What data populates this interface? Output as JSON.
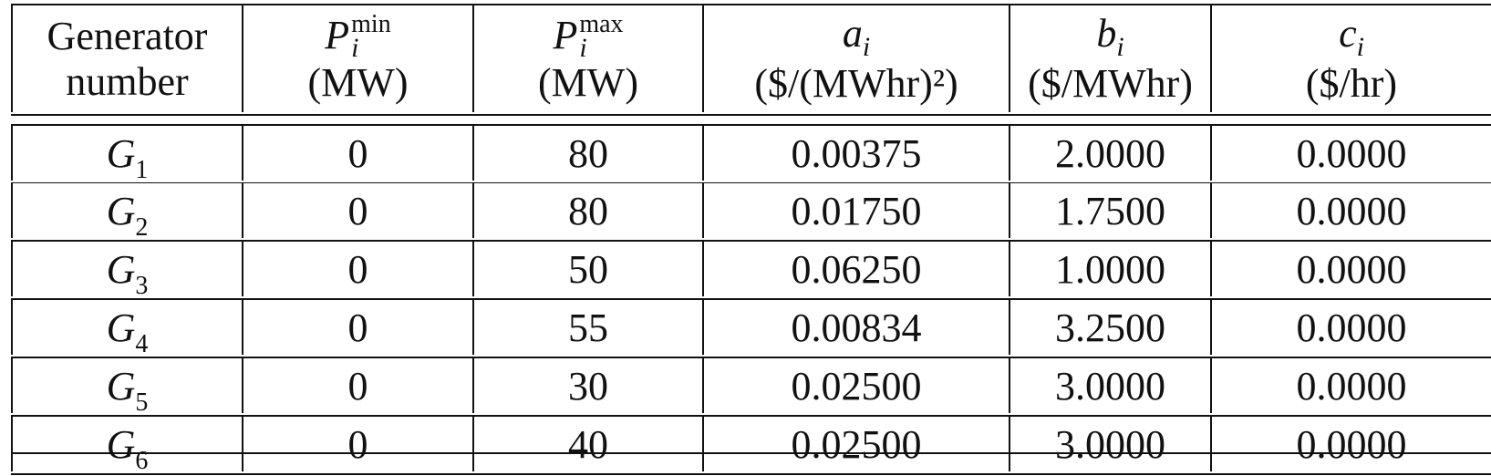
{
  "table": {
    "columns": [
      {
        "key": "generator",
        "line1": "Generator",
        "line2": "number"
      },
      {
        "key": "p_min",
        "symbol": "P",
        "superscript": "min",
        "subscript": "i",
        "unit": "(MW)"
      },
      {
        "key": "p_max",
        "symbol": "P",
        "superscript": "max",
        "subscript": "i",
        "unit": "(MW)"
      },
      {
        "key": "a",
        "symbol": "a",
        "subscript": "i",
        "unit": "($/(MWhr)²)"
      },
      {
        "key": "b",
        "symbol": "b",
        "subscript": "i",
        "unit": "($/MWhr)"
      },
      {
        "key": "c",
        "symbol": "c",
        "subscript": "i",
        "unit": "($/hr)"
      }
    ],
    "rows": [
      {
        "gen": "G",
        "gen_sub": "1",
        "p_min": "0",
        "p_max": "80",
        "a": "0.00375",
        "b": "2.0000",
        "c": "0.0000"
      },
      {
        "gen": "G",
        "gen_sub": "2",
        "p_min": "0",
        "p_max": "80",
        "a": "0.01750",
        "b": "1.7500",
        "c": "0.0000"
      },
      {
        "gen": "G",
        "gen_sub": "3",
        "p_min": "0",
        "p_max": "50",
        "a": "0.06250",
        "b": "1.0000",
        "c": "0.0000"
      },
      {
        "gen": "G",
        "gen_sub": "4",
        "p_min": "0",
        "p_max": "55",
        "a": "0.00834",
        "b": "3.2500",
        "c": "0.0000"
      },
      {
        "gen": "G",
        "gen_sub": "5",
        "p_min": "0",
        "p_max": "30",
        "a": "0.02500",
        "b": "3.0000",
        "c": "0.0000"
      },
      {
        "gen": "G",
        "gen_sub": "6",
        "p_min": "0",
        "p_max": "40",
        "a": "0.02500",
        "b": "3.0000",
        "c": "0.0000"
      }
    ]
  }
}
